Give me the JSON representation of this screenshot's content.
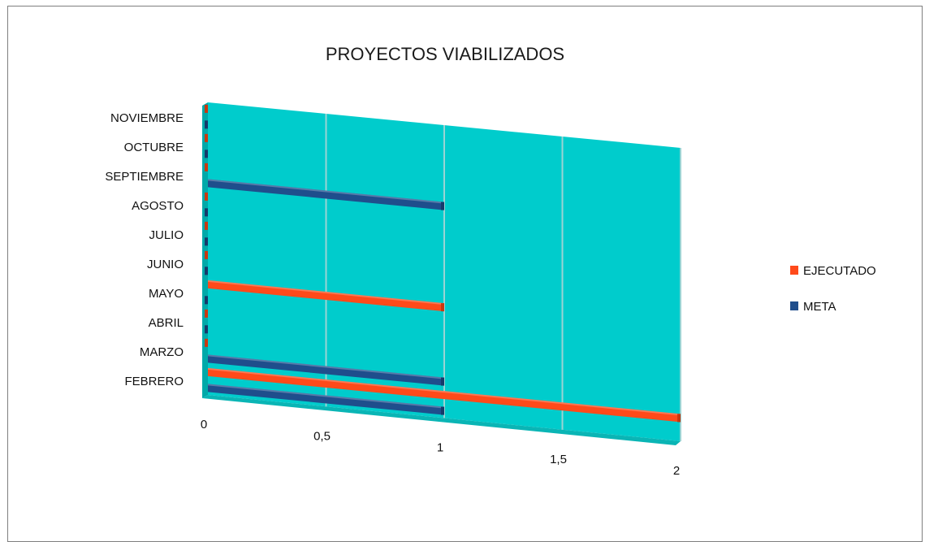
{
  "chart_data": {
    "type": "bar",
    "orientation": "horizontal",
    "title": "PROYECTOS VIABILIZADOS",
    "categories": [
      "FEBRERO",
      "MARZO",
      "ABRIL",
      "MAYO",
      "JUNIO",
      "JULIO",
      "AGOSTO",
      "SEPTIEMBRE",
      "OCTUBRE",
      "NOVIEMBRE"
    ],
    "series": [
      {
        "name": "EJECUTADO",
        "color": "#ff4a1a",
        "values": [
          2,
          0,
          0,
          1,
          0,
          0,
          0,
          0,
          0,
          0
        ]
      },
      {
        "name": "META",
        "color": "#1f4e8c",
        "values": [
          1,
          1,
          0,
          0,
          0,
          0,
          0,
          1,
          0,
          0
        ]
      }
    ],
    "xlim": [
      0,
      2
    ],
    "ticks": [
      "0",
      "0,5",
      "1",
      "1,5",
      "2"
    ],
    "tick_values": [
      0,
      0.5,
      1,
      1.5,
      2
    ],
    "plot_background": "#00cccc",
    "grid": true,
    "legend_position": "right"
  }
}
